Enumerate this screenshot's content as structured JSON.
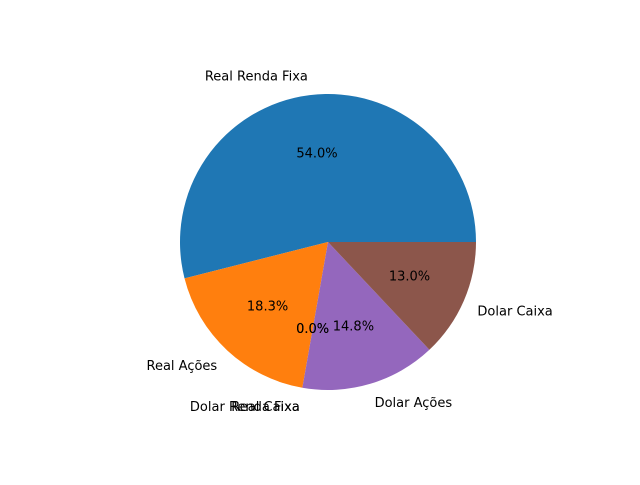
{
  "chart_data": {
    "type": "pie",
    "title": "",
    "start_angle_deg": 0,
    "direction": "counterclockwise",
    "slices": [
      {
        "label": "Real Renda Fixa",
        "value": 54.0,
        "pct_label": "54.0%",
        "color": "#1f77b4"
      },
      {
        "label": "Real Ações",
        "value": 18.3,
        "pct_label": "18.3%",
        "color": "#ff7f0e"
      },
      {
        "label": "Real Caixa",
        "value": 0.0,
        "pct_label": "0.0%",
        "color": "#2ca02c"
      },
      {
        "label": "Dolar Renda Fixa",
        "value": 0.0,
        "pct_label": "0.0%",
        "color": "#d62728"
      },
      {
        "label": "Dolar Ações",
        "value": 14.8,
        "pct_label": "14.8%",
        "color": "#9467bd"
      },
      {
        "label": "Dolar Caixa",
        "value": 13.0,
        "pct_label": "13.0%",
        "color": "#8c564b"
      }
    ]
  }
}
